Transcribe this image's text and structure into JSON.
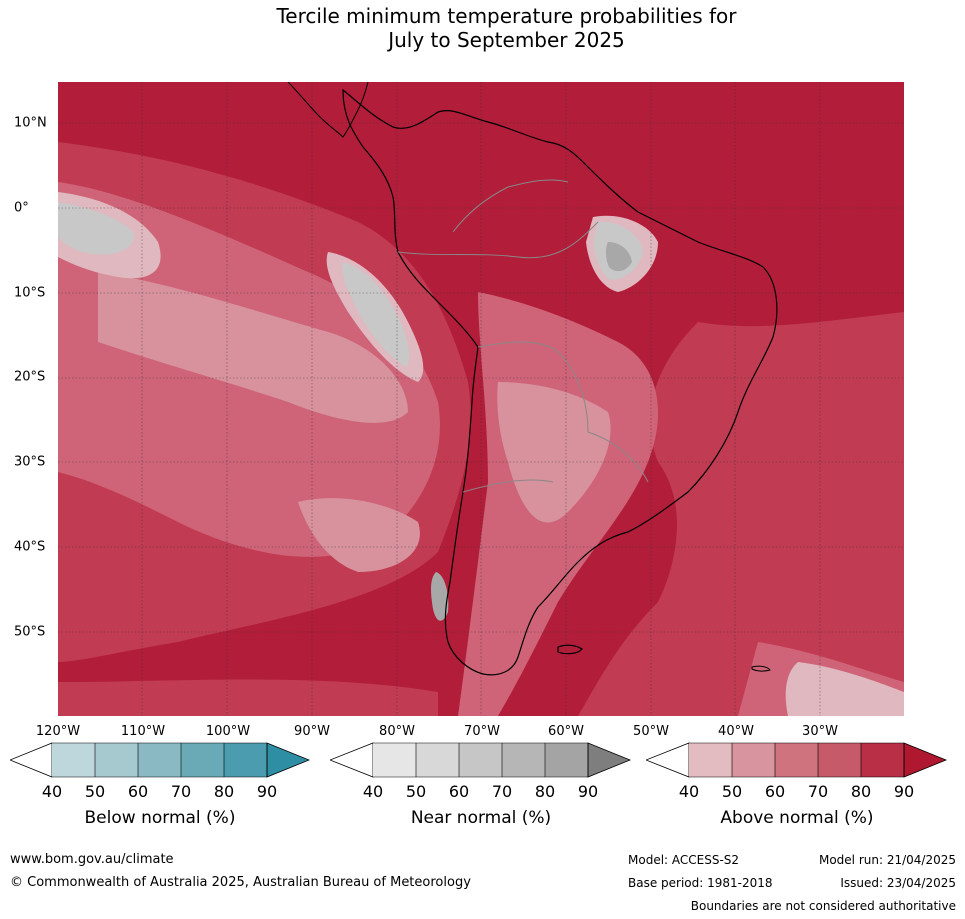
{
  "title": {
    "line1": "Tercile minimum temperature probabilities for",
    "line2": "July to September 2025"
  },
  "map": {
    "latitude_labels": [
      "10°N",
      "0°",
      "10°S",
      "20°S",
      "30°S",
      "40°S",
      "50°S"
    ],
    "longitude_labels": [
      "120°W",
      "110°W",
      "100°W",
      "90°W",
      "80°W",
      "70°W",
      "60°W",
      "50°W",
      "40°W",
      "30°W"
    ],
    "colors": {
      "above_90": "#b21d39",
      "above_80": "#c13b52",
      "above_70": "#cf6478",
      "above_60": "#d7929d",
      "above_50": "#e0b8bf",
      "near_grey": "#c8c8c8",
      "near_dark": "#a8a8a8",
      "land_outline": "#000000",
      "borders": "#888888"
    }
  },
  "legends": [
    {
      "title": "Below normal (%)",
      "ticks": [
        "40",
        "50",
        "60",
        "70",
        "80",
        "90"
      ],
      "colors": [
        "#bed7dc",
        "#a6c9d0",
        "#8ab9c3",
        "#6aaab7",
        "#4a9cae",
        "#2e8ea3"
      ]
    },
    {
      "title": "Near normal (%)",
      "ticks": [
        "40",
        "50",
        "60",
        "70",
        "80",
        "90"
      ],
      "colors": [
        "#e6e6e6",
        "#d8d8d8",
        "#c6c6c6",
        "#b6b6b6",
        "#a4a4a4",
        "#7e7e7e"
      ]
    },
    {
      "title": "Above normal (%)",
      "ticks": [
        "40",
        "50",
        "60",
        "70",
        "80",
        "90"
      ],
      "colors": [
        "#e3bcc2",
        "#d9959f",
        "#cf737f",
        "#c65a68",
        "#b92f45",
        "#b0182f"
      ]
    }
  ],
  "footer": {
    "website": "www.bom.gov.au/climate",
    "copyright": "© Commonwealth of Australia 2025, Australian Bureau of Meteorology",
    "model": "Model: ACCESS-S2",
    "base_period": "Base period: 1981-2018",
    "model_run": "Model run: 21/04/2025",
    "issued": "Issued: 23/04/2025",
    "disclaimer": "Boundaries are not considered authoritative"
  }
}
